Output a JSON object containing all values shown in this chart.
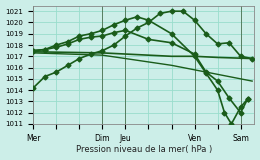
{
  "background_color": "#cceee8",
  "grid_color": "#99ddcc",
  "line_color": "#1a5c1a",
  "xlabel": "Pression niveau de la mer( hPa )",
  "ylim": [
    1011,
    1021.5
  ],
  "yticks": [
    1011,
    1012,
    1013,
    1014,
    1015,
    1016,
    1017,
    1018,
    1019,
    1020,
    1021
  ],
  "xlim": [
    0,
    9.6
  ],
  "day_labels": [
    "Mer",
    "",
    "",
    "Dim",
    "Jeu",
    "",
    "",
    "Ven",
    "",
    "Sam"
  ],
  "day_positions": [
    0,
    1,
    2,
    3,
    4,
    5,
    6,
    7,
    8,
    9
  ],
  "vlines_x": [
    0,
    3,
    4,
    7,
    9
  ],
  "vline_color": "#446644",
  "series": [
    {
      "x": [
        0,
        3,
        4,
        5,
        6,
        7,
        8,
        9.5
      ],
      "y": [
        1017.4,
        1017.3,
        1017.2,
        1017.1,
        1017.0,
        1017.0,
        1016.9,
        1016.8
      ],
      "marker": null,
      "lw": 1.2
    },
    {
      "x": [
        0,
        3,
        4,
        5,
        6,
        7,
        8,
        9.5
      ],
      "y": [
        1017.3,
        1017.1,
        1016.8,
        1016.5,
        1016.2,
        1015.8,
        1015.4,
        1014.8
      ],
      "marker": null,
      "lw": 1.0
    },
    {
      "x": [
        0,
        0.5,
        1,
        1.5,
        2,
        2.5,
        3,
        3.5,
        4,
        4.5,
        5,
        5.5,
        6,
        6.5,
        7,
        7.5,
        8,
        8.5,
        9,
        9.5
      ],
      "y": [
        1014.2,
        1015.2,
        1015.6,
        1016.2,
        1016.8,
        1017.2,
        1017.5,
        1018.0,
        1018.8,
        1019.5,
        1020.0,
        1020.8,
        1021.0,
        1021.0,
        1020.2,
        1019.0,
        1018.1,
        1018.2,
        1017.0,
        1016.8
      ],
      "marker": "D",
      "ms": 2.5,
      "lw": 1.2
    },
    {
      "x": [
        0,
        0.5,
        1,
        1.5,
        2,
        2.5,
        3,
        3.5,
        4,
        5,
        6,
        7,
        7.5,
        8,
        8.5,
        9,
        9.3
      ],
      "y": [
        1017.5,
        1017.6,
        1017.8,
        1018.1,
        1018.5,
        1018.7,
        1018.8,
        1019.1,
        1019.3,
        1018.5,
        1018.2,
        1017.2,
        1015.6,
        1014.8,
        1013.3,
        1012.0,
        1013.2
      ],
      "marker": "D",
      "ms": 2.5,
      "lw": 1.2
    },
    {
      "x": [
        0,
        0.5,
        1,
        1.5,
        2,
        2.5,
        3,
        3.5,
        4,
        4.5,
        5,
        6,
        7,
        7.5,
        8,
        8.3,
        8.6,
        9,
        9.3
      ],
      "y": [
        1017.5,
        1017.6,
        1018.0,
        1018.3,
        1018.8,
        1019.0,
        1019.3,
        1019.8,
        1020.2,
        1020.5,
        1020.2,
        1019.0,
        1017.0,
        1015.5,
        1014.0,
        1012.0,
        1011.0,
        1012.5,
        1013.2
      ],
      "marker": "D",
      "ms": 2.5,
      "lw": 1.2
    }
  ]
}
